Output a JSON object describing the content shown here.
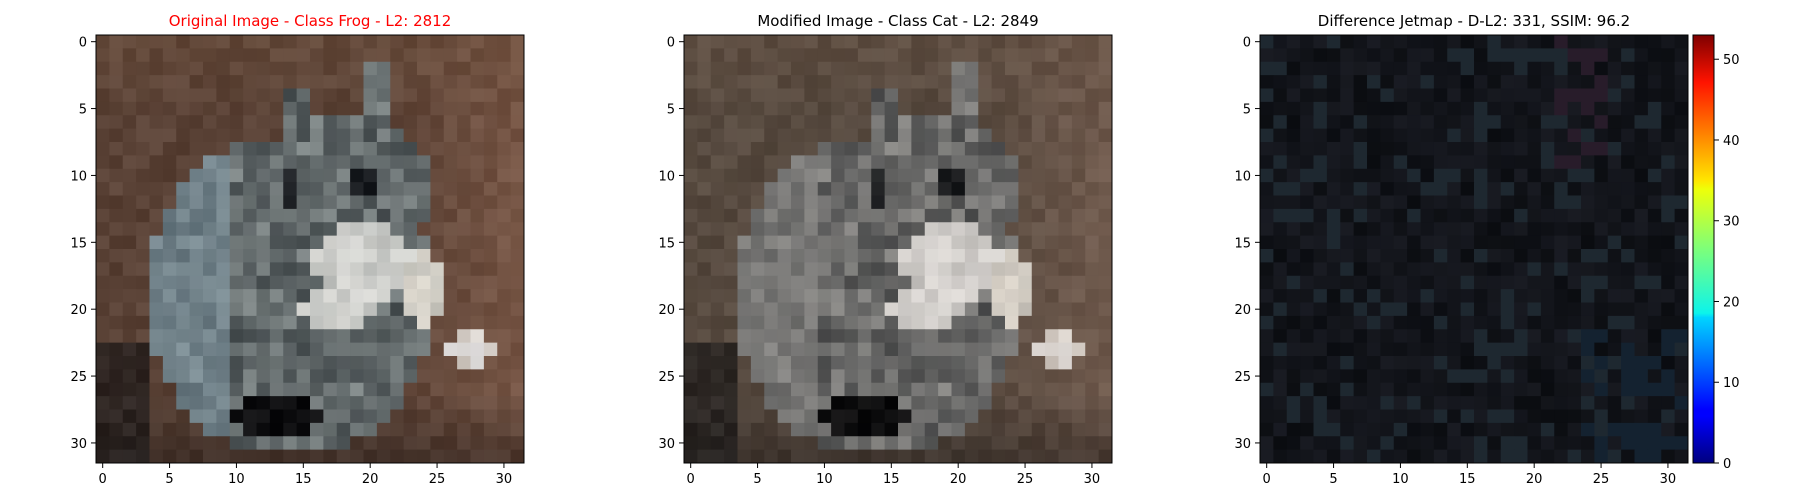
{
  "chart_data": [
    {
      "type": "heatmap",
      "title": "Original Image - Class Frog - L2: 2812",
      "title_color": "#ff0000",
      "x_ticks": [
        0,
        5,
        10,
        15,
        20,
        25,
        30
      ],
      "y_ticks": [
        0,
        5,
        10,
        15,
        20,
        25,
        30
      ],
      "xlim": [
        -0.5,
        31.5
      ],
      "ylim": [
        31.5,
        -0.5
      ],
      "grid": false,
      "colors": {
        "background": "#5a4236",
        "fur_light": "#d8d8d4",
        "fur_gray": "#7e8686",
        "fur_dark": "#20262a",
        "blue_gray": "#7e98a6"
      }
    },
    {
      "type": "heatmap",
      "title": "Modified Image - Class Cat - L2: 2849",
      "title_color": "#000000",
      "x_ticks": [
        0,
        5,
        10,
        15,
        20,
        25,
        30
      ],
      "y_ticks": [
        0,
        5,
        10,
        15,
        20,
        25,
        30
      ],
      "xlim": [
        -0.5,
        31.5
      ],
      "ylim": [
        31.5,
        -0.5
      ],
      "grid": false,
      "colors": {
        "background": "#5c4a3c",
        "fur_light": "#dcdcdc",
        "fur_gray": "#868888",
        "fur_dark": "#22262a"
      }
    },
    {
      "type": "heatmap",
      "title": "Difference Jetmap - D-L2: 331, SSIM: 96.2",
      "title_color": "#000000",
      "x_ticks": [
        0,
        5,
        10,
        15,
        20,
        25,
        30
      ],
      "y_ticks": [
        0,
        5,
        10,
        15,
        20,
        25,
        30
      ],
      "xlim": [
        -0.5,
        31.5
      ],
      "ylim": [
        31.5,
        -0.5
      ],
      "grid": false,
      "colorbar": {
        "range": [
          0,
          53
        ],
        "ticks": [
          0,
          10,
          20,
          30,
          40,
          50
        ],
        "colormap": "jet"
      },
      "colors": {
        "base": "#0c0c10"
      }
    }
  ]
}
